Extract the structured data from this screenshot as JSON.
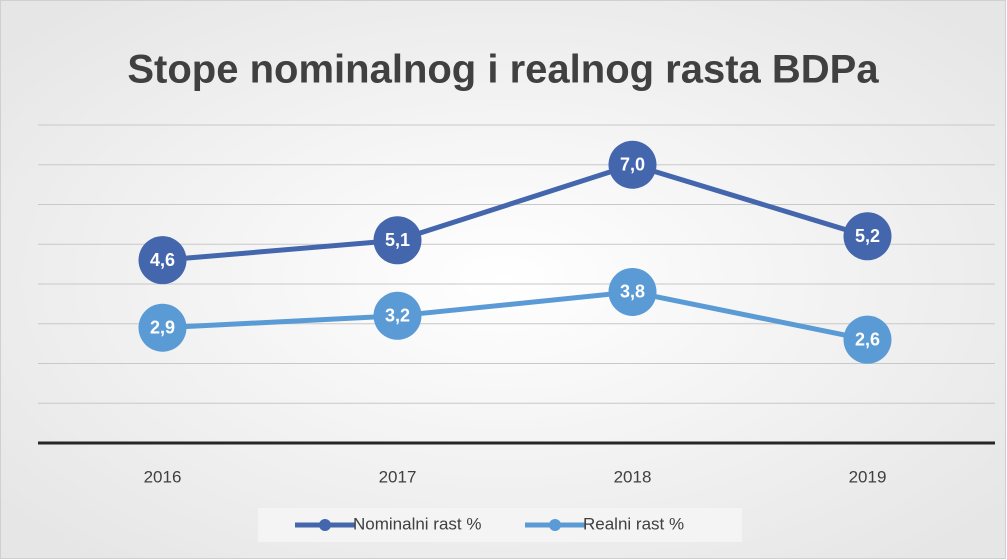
{
  "chart_data": {
    "type": "line",
    "title": "Stope nominalnog i realnog rasta BDPa",
    "categories": [
      "2016",
      "2017",
      "2018",
      "2019"
    ],
    "series": [
      {
        "name": "Nominalni rast %",
        "color": "#4466ad",
        "values": [
          4.6,
          5.1,
          7.0,
          5.2
        ],
        "value_labels": [
          "4,6",
          "5,1",
          "7,0",
          "5,2"
        ]
      },
      {
        "name": "Realni rast %",
        "color": "#5b9bd5",
        "values": [
          2.9,
          3.2,
          3.8,
          2.6
        ],
        "value_labels": [
          "2,9",
          "3,2",
          "3,8",
          "2,6"
        ]
      }
    ],
    "ylim": [
      0,
      8
    ],
    "yticks": [
      0,
      1,
      2,
      3,
      4,
      5,
      6,
      7,
      8
    ],
    "grid": true,
    "legend": "bottom"
  }
}
